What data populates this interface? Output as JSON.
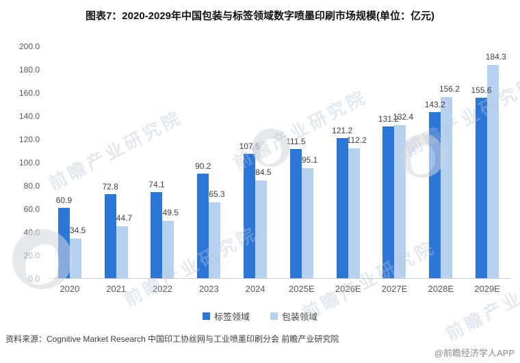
{
  "page": {
    "title": "图表7：2020-2029年中国包装与标签领域数字喷墨印刷市场规模(单位：亿元)"
  },
  "chart_data": {
    "type": "bar",
    "title": "图表7：2020-2029年中国包装与标签领域数字喷墨印刷市场规模(单位：亿元)",
    "unit": "亿元",
    "categories": [
      "2020",
      "2021",
      "2022",
      "2023",
      "2024",
      "2025E",
      "2026E",
      "2027E",
      "2028E",
      "2029E"
    ],
    "series": [
      {
        "name": "标签领域",
        "color": "#2C76D7",
        "values": [
          60.9,
          72.8,
          74.1,
          90.2,
          107.5,
          111.5,
          121.2,
          131.2,
          143.2,
          155.6
        ]
      },
      {
        "name": "包装领域",
        "color": "#B7D1F1",
        "values": [
          34.5,
          44.7,
          49.5,
          65.3,
          84.5,
          95.1,
          112.2,
          132.4,
          156.2,
          184.3
        ]
      }
    ],
    "xlabel": "",
    "ylabel": "",
    "ylim": [
      0,
      200
    ],
    "y_ticks": [
      "200.0",
      "180.0",
      "160.0",
      "140.0",
      "120.0",
      "100.0",
      "80.0",
      "60.0",
      "40.0",
      "20.0",
      "0.0"
    ],
    "grid": false,
    "legend_position": "bottom"
  },
  "legend": {
    "items": [
      {
        "label": "标签领域",
        "color": "#2C76D7"
      },
      {
        "label": "包装领域",
        "color": "#B7D1F1"
      }
    ]
  },
  "watermark": {
    "text": "前瞻产业研究院"
  },
  "footer": {
    "source": "资料来源：Cognitive Market Research 中国印工协丝网与工业喷墨印刷分会 前瞻产业研究院",
    "credit": "@前瞻经济学人APP"
  }
}
